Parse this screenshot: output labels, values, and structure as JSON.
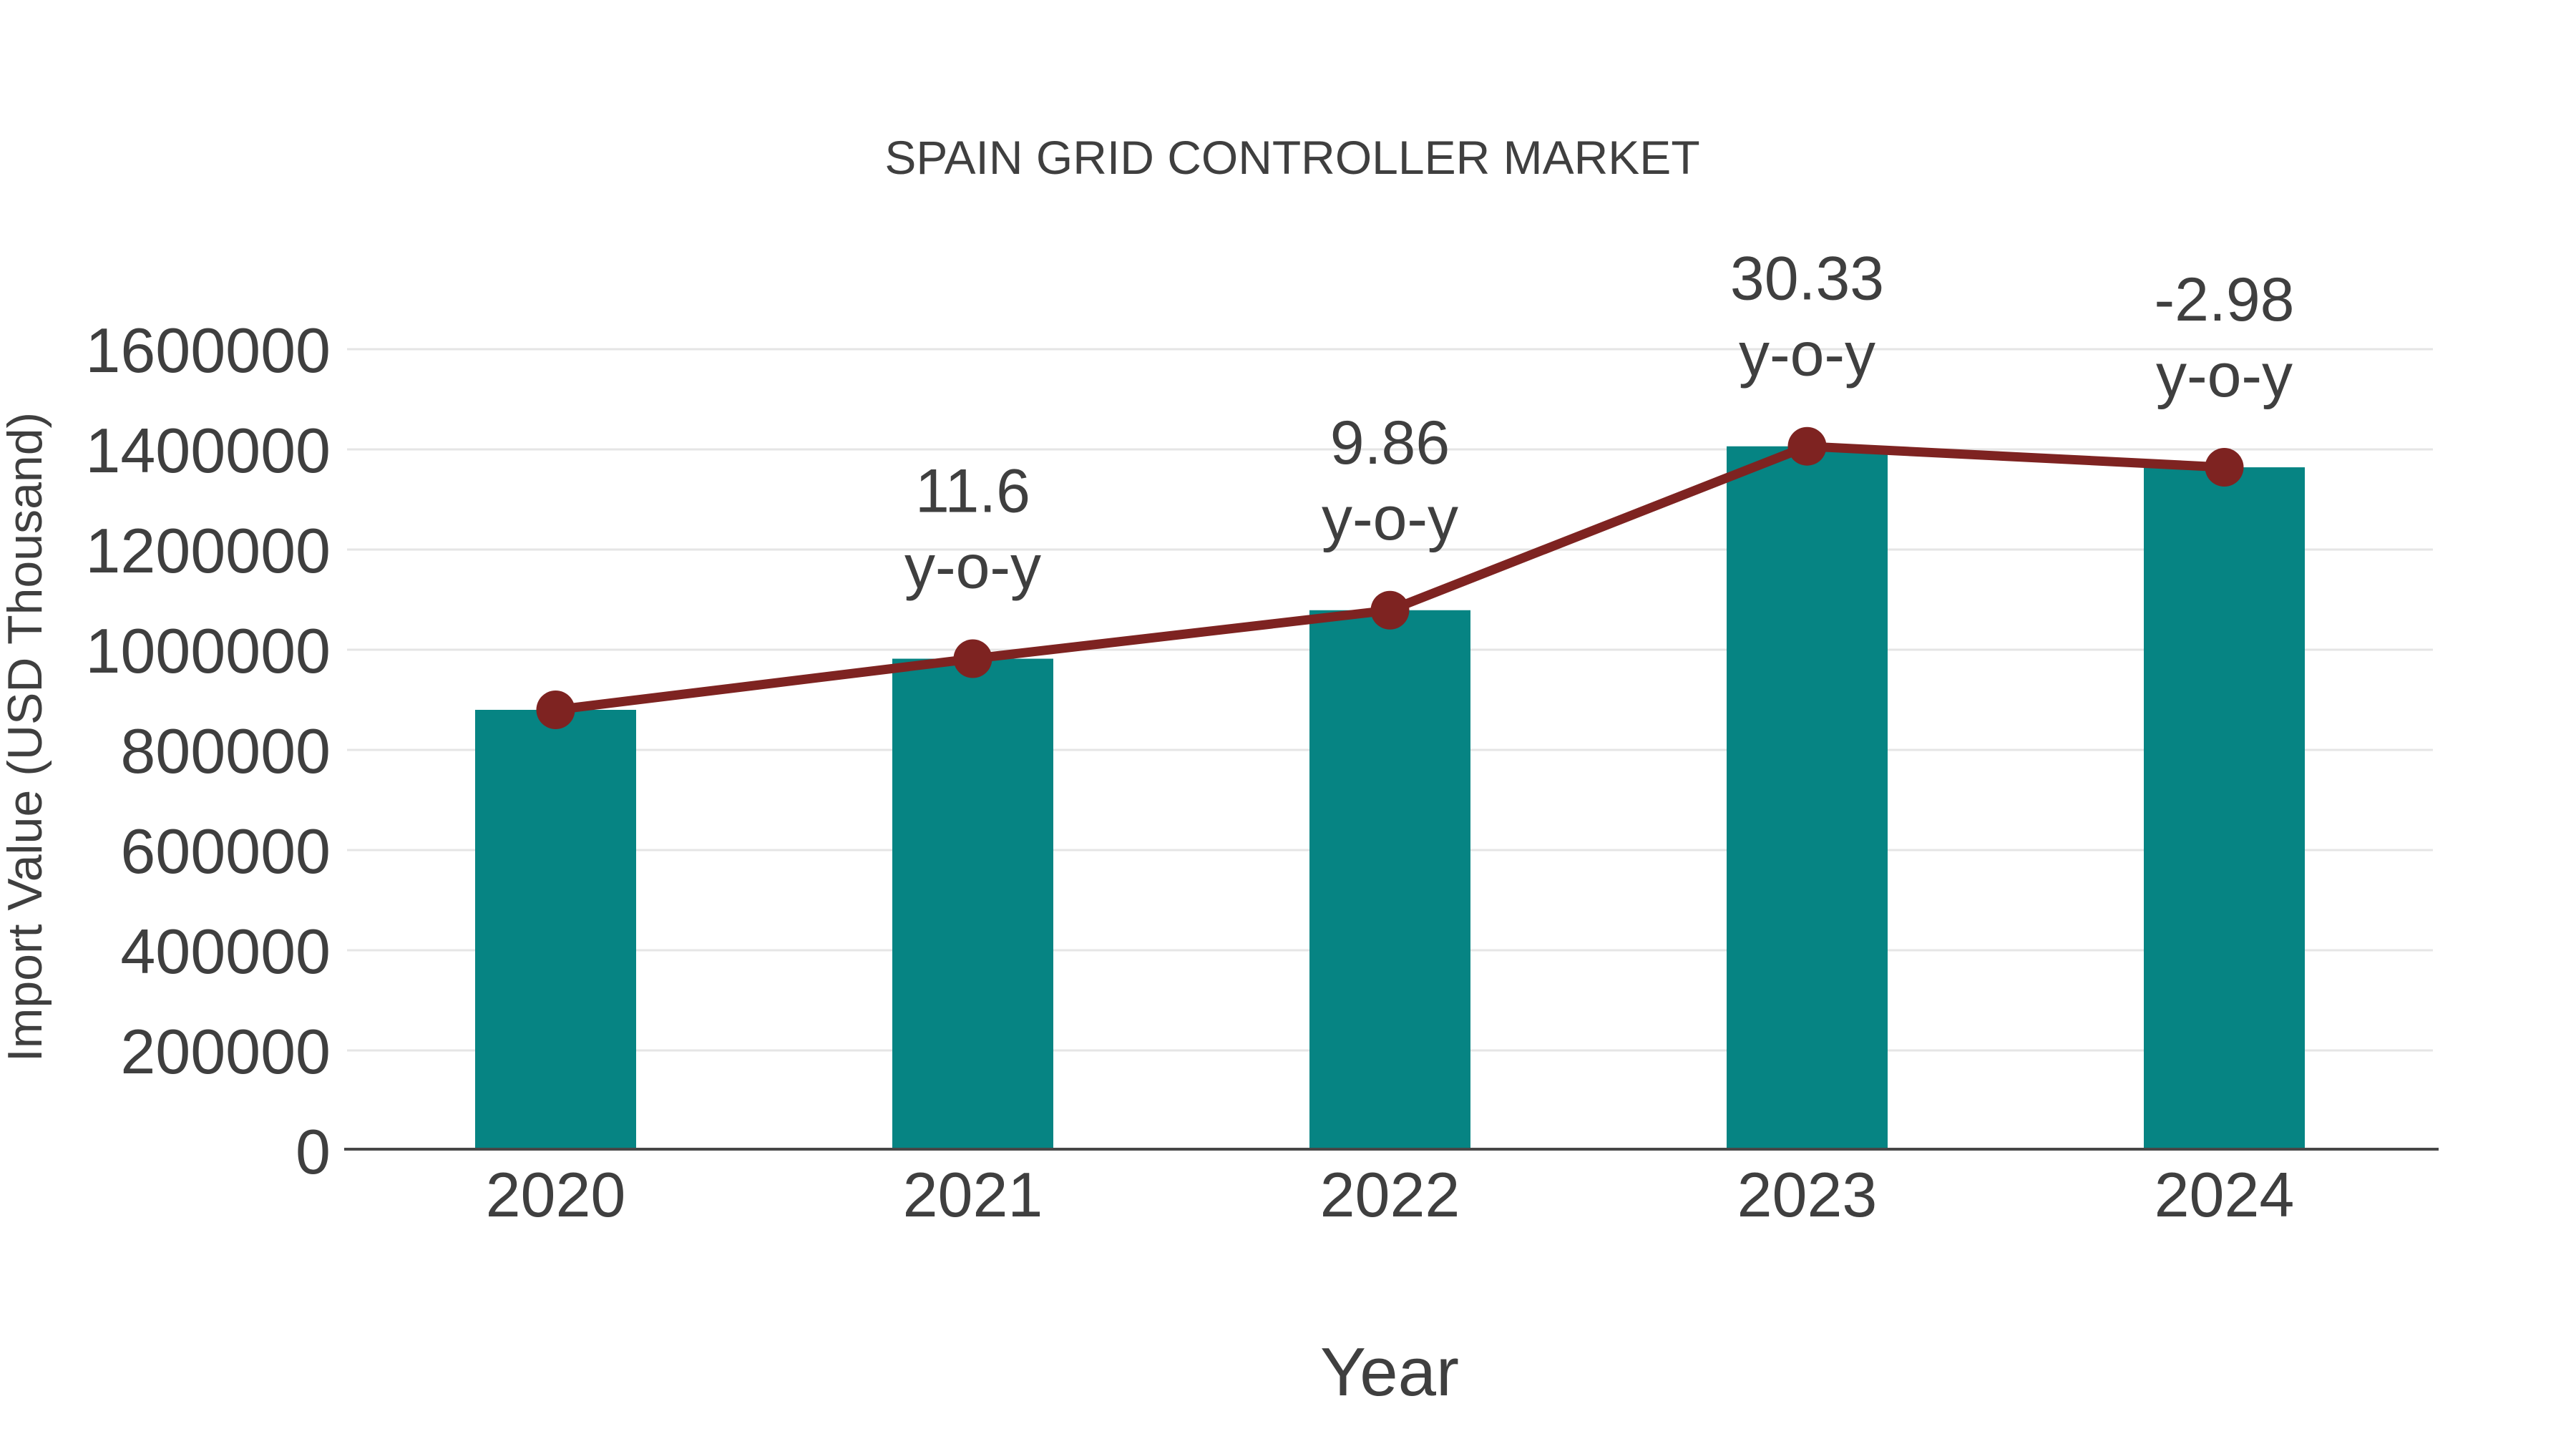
{
  "chart_data": {
    "type": "bar+line",
    "title": "SPAIN GRID CONTROLLER MARKET",
    "xlabel": "Year",
    "ylabel": "Import Value (USD Thousand)",
    "categories": [
      "2020",
      "2021",
      "2022",
      "2023",
      "2024"
    ],
    "series": [
      {
        "name": "import-value-bars",
        "type": "bar",
        "color": "#068483",
        "values": [
          880000,
          982080,
          1078900,
          1406100,
          1364200
        ]
      },
      {
        "name": "import-value-trend-line",
        "type": "line",
        "color": "#7e2321",
        "values": [
          880000,
          982080,
          1078900,
          1406100,
          1364200
        ]
      }
    ],
    "annotations": [
      {
        "category": "2021",
        "line1": "11.6",
        "line2": "y-o-y"
      },
      {
        "category": "2022",
        "line1": "9.86",
        "line2": "y-o-y"
      },
      {
        "category": "2023",
        "line1": "30.33",
        "line2": "y-o-y"
      },
      {
        "category": "2024",
        "line1": "-2.98",
        "line2": "y-o-y"
      }
    ],
    "ylim": [
      0,
      1600000
    ],
    "ytick_step": 200000,
    "ytick_labels": [
      "0",
      "200000",
      "400000",
      "600000",
      "800000",
      "1000000",
      "1200000",
      "1400000",
      "1600000"
    ],
    "grid": true,
    "legend": false,
    "colors": {
      "bar": "#068483",
      "line": "#7e2321",
      "marker": "#7e2321",
      "text": "#3f3f3f",
      "grid": "#e5e5e5",
      "axis": "#474747",
      "background": "#ffffff"
    }
  }
}
